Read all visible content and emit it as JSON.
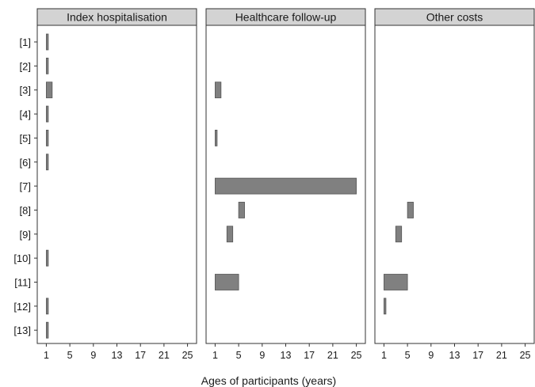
{
  "chart_data": {
    "type": "bar",
    "orientation": "horizontal-range",
    "xlabel": "Ages of participants (years)",
    "xticks": [
      1,
      5,
      9,
      13,
      17,
      21,
      25
    ],
    "xlim": [
      0,
      26
    ],
    "categories": [
      "[1]",
      "[2]",
      "[3]",
      "[4]",
      "[5]",
      "[6]",
      "[7]",
      "[8]",
      "[9]",
      "[10]",
      "[11]",
      "[12]",
      "[13]"
    ],
    "bar_color": "#808080",
    "panels": [
      {
        "title": "Index hospitalisation",
        "ranges": [
          [
            1,
            1.2
          ],
          [
            1,
            1.2
          ],
          [
            1,
            2
          ],
          [
            1,
            1.2
          ],
          [
            1,
            1.2
          ],
          [
            1,
            1.2
          ],
          null,
          null,
          null,
          [
            1,
            1.2
          ],
          null,
          [
            1,
            1.2
          ],
          [
            1,
            1.2
          ]
        ]
      },
      {
        "title": "Healthcare follow-up",
        "ranges": [
          null,
          null,
          [
            1,
            2
          ],
          null,
          [
            1,
            1.2
          ],
          null,
          [
            1,
            25
          ],
          [
            5,
            6
          ],
          [
            3,
            4
          ],
          null,
          [
            1,
            5
          ],
          null,
          null
        ]
      },
      {
        "title": "Other costs",
        "ranges": [
          null,
          null,
          null,
          null,
          null,
          null,
          null,
          [
            5,
            6
          ],
          [
            3,
            4
          ],
          null,
          [
            1,
            5
          ],
          [
            1,
            1.3
          ],
          null
        ]
      }
    ]
  }
}
